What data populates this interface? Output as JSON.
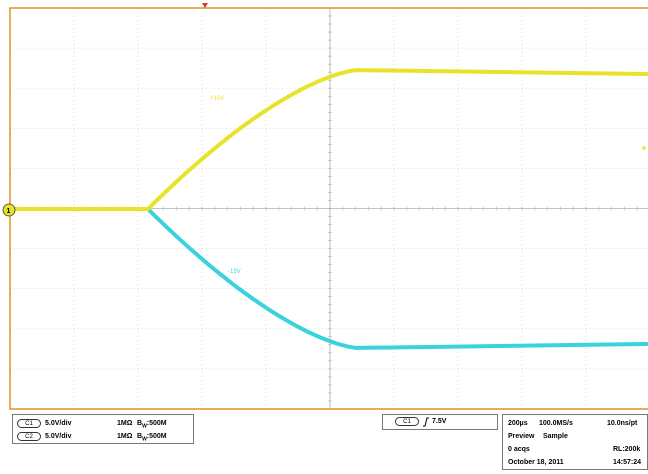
{
  "colors": {
    "ch1": "#e8e22a",
    "ch2": "#3ad2dc",
    "frame": "#e0902a",
    "grid": "#c8c8c8",
    "trigger_marker": "#d23c2a"
  },
  "waveform": {
    "ch1_label": "+15V",
    "ch2_label": "-15V",
    "ground_marker": "1"
  },
  "ch_settings": {
    "ch1_badge": "C1",
    "ch1_scale": "5.0V/div",
    "ch1_impedance": "1MΩ",
    "ch1_bw": "B",
    "ch1_bw_sub": "W",
    "ch1_bw_value": ":500M",
    "ch2_badge": "C2",
    "ch2_scale": "5.0V/div",
    "ch2_impedance": "1MΩ",
    "ch2_bw": "B",
    "ch2_bw_sub": "W",
    "ch2_bw_value": ":500M"
  },
  "trigger": {
    "badge": "C1",
    "slope_icon": "rising-edge-icon",
    "level": "7.5V"
  },
  "acquisition": {
    "time_div": "200µs",
    "sample_rate": "100.0MS/s",
    "resolution": "10.0ns/pt",
    "mode": "Preview",
    "sampling": "Sample",
    "acqs": "0 acqs",
    "record_length": "RL:200k",
    "date": "October 18, 2011",
    "time": "14:57:24"
  }
}
